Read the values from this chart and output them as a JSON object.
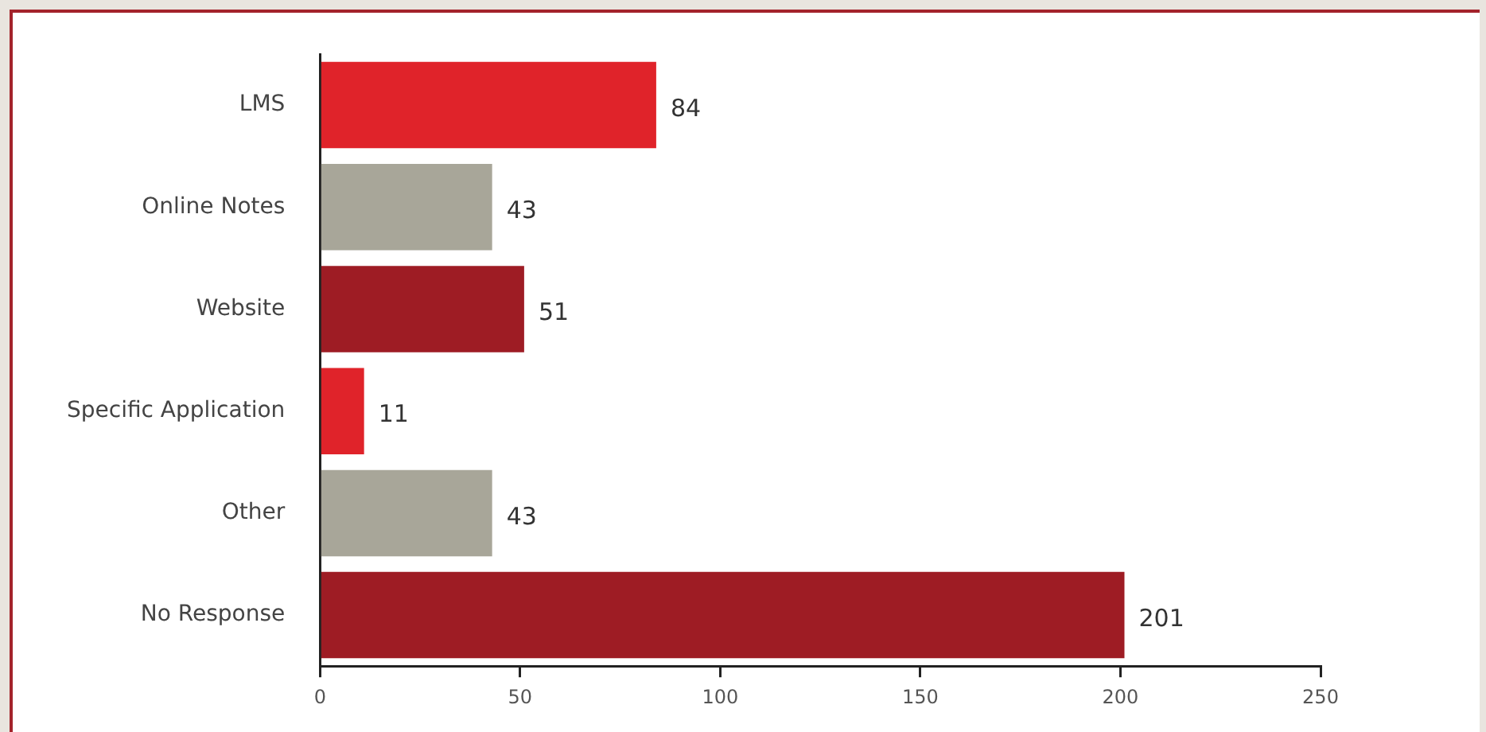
{
  "chart_data": {
    "type": "bar",
    "orientation": "horizontal",
    "categories": [
      "LMS",
      "Online Notes",
      "Website",
      "Specific Application",
      "Other",
      "No Response"
    ],
    "values": [
      84,
      43,
      51,
      11,
      43,
      201
    ],
    "colors": [
      "#e0232a",
      "#a8a699",
      "#9e1c24",
      "#e0232a",
      "#a8a699",
      "#9e1c24"
    ],
    "xlim": [
      0,
      250
    ],
    "xticks": [
      0,
      50,
      100,
      150,
      200,
      250
    ],
    "data_labels": true,
    "grid": false,
    "legend": false
  }
}
